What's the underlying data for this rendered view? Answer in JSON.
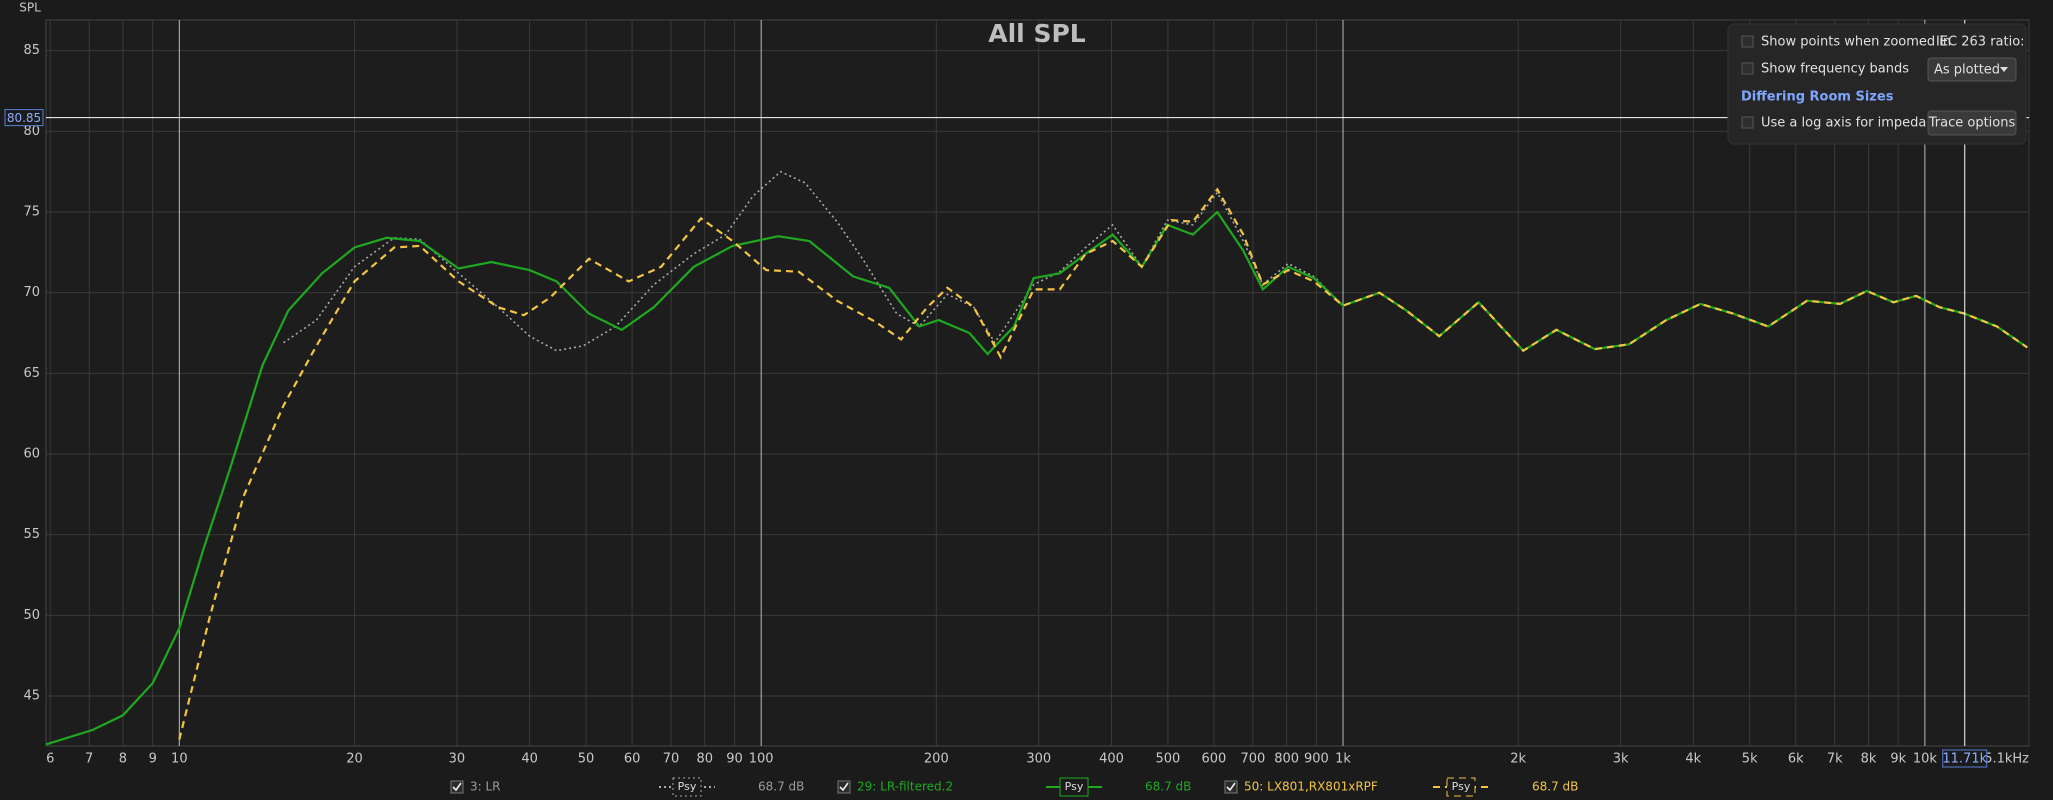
{
  "chart_data": {
    "type": "line",
    "title": "All SPL",
    "y_label": "SPL",
    "xscale": "log",
    "grid": true,
    "xlim": [
      5.9,
      15100
    ],
    "ylim": [
      41.9,
      86.9
    ],
    "xticks": [
      6,
      7,
      8,
      9,
      10,
      20,
      30,
      40,
      50,
      60,
      70,
      80,
      90,
      100,
      200,
      300,
      400,
      500,
      600,
      700,
      800,
      900,
      {
        "value": 1000,
        "label": "1k"
      },
      {
        "value": 2000,
        "label": "2k"
      },
      {
        "value": 3000,
        "label": "3k"
      },
      {
        "value": 4000,
        "label": "4k"
      },
      {
        "value": 5000,
        "label": "5k"
      },
      {
        "value": 6000,
        "label": "6k"
      },
      {
        "value": 7000,
        "label": "7k"
      },
      {
        "value": 8000,
        "label": "8k"
      },
      {
        "value": 9000,
        "label": "9k"
      },
      {
        "value": 10000,
        "label": "10k"
      },
      {
        "value": 15100,
        "label": "15.1kHz"
      }
    ],
    "yticks": [
      45,
      50,
      55,
      60,
      65,
      70,
      75,
      80,
      85
    ],
    "cursor": {
      "x": {
        "value": 11710,
        "label": "11.71k"
      },
      "y": 80.85
    },
    "series": [
      {
        "name": "3: LR",
        "color": "#a8a8a8",
        "dash": "dotted",
        "smoothing": "Psy",
        "level": "68.7 dB",
        "x": [
          15.1,
          17.2,
          20,
          23.4,
          25.9,
          30.2,
          35.3,
          40,
          44.5,
          49.4,
          56.2,
          65.4,
          76.6,
          86.9,
          96.9,
          108,
          119,
          135,
          150,
          171,
          187,
          209,
          232,
          252,
          294,
          326,
          361,
          402,
          451,
          499,
          552,
          608,
          674,
          728,
          805,
          891,
          1000
        ],
        "values": [
          66.9,
          68.3,
          71.6,
          73.4,
          73.3,
          71.2,
          69.1,
          67.3,
          66.4,
          66.7,
          67.9,
          70.5,
          72.4,
          73.6,
          76.0,
          77.5,
          76.8,
          74.4,
          72.0,
          68.7,
          67.9,
          69.9,
          69.1,
          66.9,
          70.5,
          71.3,
          72.8,
          74.2,
          71.6,
          74.5,
          74.2,
          76.2,
          73.2,
          70.5,
          71.8,
          71.0,
          69.2
        ]
      },
      {
        "name": "29: LR-filtered.2",
        "color": "#1fa81f",
        "dash": "solid",
        "smoothing": "Psy",
        "level": "68.7 dB",
        "x": [
          5.9,
          7.1,
          8.0,
          9.0,
          10,
          11,
          12.2,
          13.9,
          15.4,
          17.6,
          20,
          22.7,
          25.9,
          30.2,
          34.4,
          40,
          44.5,
          50.6,
          57.6,
          65.4,
          76.6,
          89.3,
          107,
          121,
          144,
          166,
          187,
          202,
          228,
          245,
          272,
          294,
          326,
          361,
          402,
          451,
          499,
          552,
          608,
          674,
          728,
          805,
          891,
          1000,
          1155,
          1284,
          1463,
          1710,
          2041,
          2327,
          2709,
          3101,
          3593,
          4114,
          4682,
          5380,
          6276,
          7149,
          7948,
          8832,
          9657,
          10600,
          11700,
          13300,
          15000
        ],
        "values": [
          42.0,
          42.9,
          43.8,
          45.8,
          49.2,
          54.1,
          59.0,
          65.5,
          68.9,
          71.2,
          72.8,
          73.4,
          73.2,
          71.5,
          71.9,
          71.4,
          70.7,
          68.7,
          67.7,
          69.1,
          71.6,
          72.9,
          73.5,
          73.2,
          71.0,
          70.3,
          67.9,
          68.3,
          67.5,
          66.2,
          67.9,
          70.9,
          71.2,
          72.4,
          73.6,
          71.6,
          74.2,
          73.6,
          75.0,
          72.6,
          70.2,
          71.6,
          70.9,
          69.2,
          70.0,
          68.9,
          67.3,
          69.4,
          66.4,
          67.7,
          66.5,
          66.8,
          68.3,
          69.3,
          68.7,
          67.9,
          69.5,
          69.3,
          70.1,
          69.4,
          69.8,
          69.1,
          68.7,
          67.9,
          66.6
        ]
      },
      {
        "name": "50: LX801,RX801xRPF",
        "color": "#f2c443",
        "dash": "dashed",
        "smoothing": "Psy",
        "level": "68.7 dB",
        "x": [
          10,
          11.3,
          12.9,
          15.1,
          17.2,
          20,
          23.4,
          25.9,
          30.2,
          35.3,
          39.1,
          43.4,
          50.6,
          59.2,
          67.3,
          78.8,
          89.3,
          102,
          116,
          135,
          157,
          174,
          193,
          209,
          232,
          258,
          294,
          326,
          361,
          402,
          451,
          507,
          552,
          608,
          674,
          728,
          805,
          891,
          1000,
          1155,
          1284,
          1463,
          1710,
          2041,
          2327,
          2709,
          3101,
          3593,
          4114,
          4682,
          5380,
          6276,
          7149,
          7948,
          8832,
          9657,
          10600,
          11700,
          13300,
          15000
        ],
        "values": [
          42.3,
          50.0,
          57.4,
          63.0,
          66.7,
          70.7,
          72.8,
          72.9,
          70.7,
          69.1,
          68.6,
          69.7,
          72.1,
          70.7,
          71.6,
          74.6,
          73.2,
          71.4,
          71.3,
          69.5,
          68.2,
          67.1,
          69.1,
          70.3,
          69.1,
          66.0,
          70.2,
          70.2,
          72.4,
          73.2,
          71.6,
          74.5,
          74.4,
          76.4,
          73.6,
          70.5,
          71.4,
          70.7,
          69.2,
          70.0,
          68.9,
          67.3,
          69.4,
          66.4,
          67.7,
          66.5,
          66.8,
          68.3,
          69.3,
          68.7,
          67.9,
          69.5,
          69.3,
          70.1,
          69.4,
          69.8,
          69.1,
          68.7,
          67.9,
          66.6
        ]
      }
    ]
  },
  "ui": {
    "panel": {
      "show_points": "Show points when zoomed in",
      "show_bands": "Show frequency bands",
      "room_sizes": "Differing Room Sizes",
      "log_axis": "Use a log axis for impedance",
      "iec_label": "IEC 263 ratio:",
      "iec_value": "As plotted",
      "trace_options": "Trace options"
    }
  }
}
